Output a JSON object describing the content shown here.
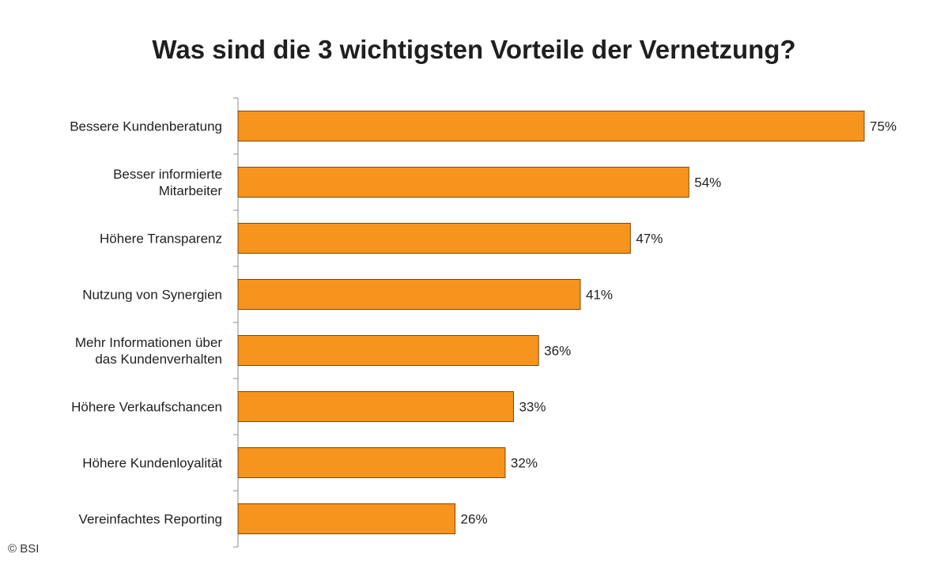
{
  "chart_data": {
    "type": "bar",
    "orientation": "horizontal",
    "title": "Was sind die 3 wichtigsten Vorteile der Vernetzung?",
    "categories": [
      [
        "Bessere Kundenberatung"
      ],
      [
        "Besser informierte",
        "Mitarbeiter"
      ],
      [
        "Höhere Transparenz"
      ],
      [
        "Nutzung von Synergien"
      ],
      [
        "Mehr Informationen über",
        "das Kundenverhalten"
      ],
      [
        "Höhere Verkaufschancen"
      ],
      [
        "Höhere Kundenloyalität"
      ],
      [
        "Vereinfachtes Reporting"
      ]
    ],
    "values": [
      75,
      54,
      47,
      41,
      36,
      33,
      32,
      26
    ],
    "value_labels": [
      "75%",
      "54%",
      "47%",
      "41%",
      "36%",
      "33%",
      "32%",
      "26%"
    ],
    "unit": "%",
    "xlim": [
      0,
      75
    ],
    "grid": false,
    "legend": "none",
    "bar_color": "#f7941d",
    "bar_stroke": "#7a4a0e"
  },
  "footer": {
    "copyright": "© BSI"
  }
}
